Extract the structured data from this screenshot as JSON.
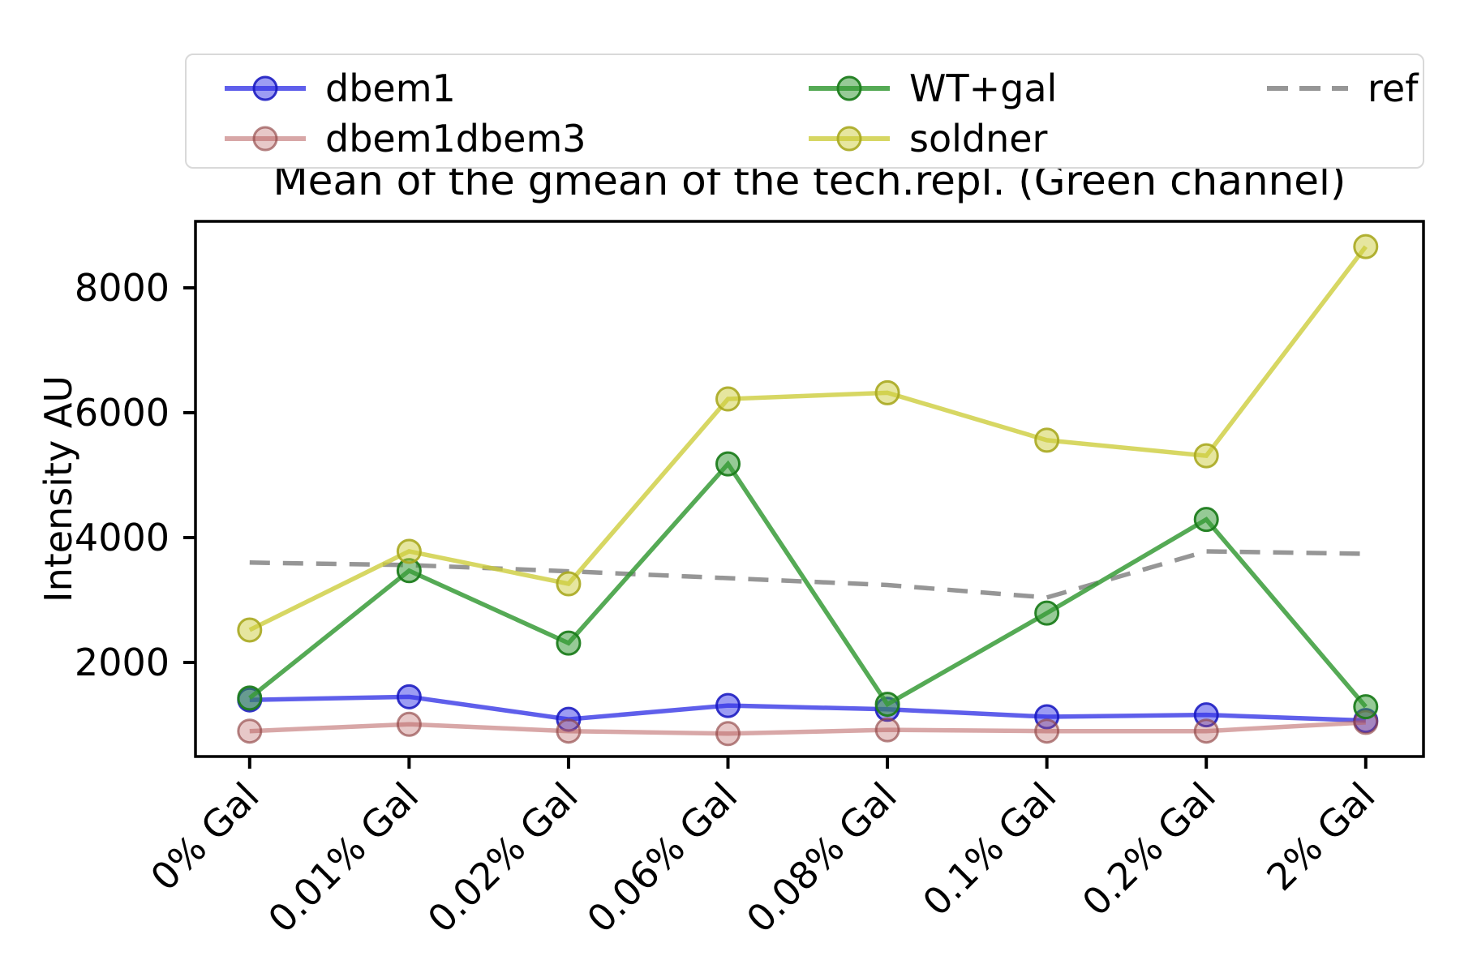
{
  "chart_data": {
    "type": "line",
    "title": "Mean of the gmean of the tech.repl. (Green channel)",
    "xlabel": "",
    "ylabel": "Intensity AU",
    "categories": [
      "0% Gal",
      "0.01% Gal",
      "0.02% Gal",
      "0.06% Gal",
      "0.08% Gal",
      "0.1% Gal",
      "0.2% Gal",
      "2% Gal"
    ],
    "yticks": [
      2000,
      4000,
      6000,
      8000
    ],
    "ylim": [
      490,
      9070
    ],
    "grid": false,
    "legend_position": "top",
    "series": [
      {
        "name": "dbem1",
        "color": "#3232e6",
        "edge": "#1818c0",
        "alpha": 0.78,
        "marker": true,
        "dashed": false,
        "zorder": 2,
        "values": [
          1400,
          1450,
          1090,
          1310,
          1250,
          1130,
          1160,
          1070
        ]
      },
      {
        "name": "dbem1dbem3",
        "color": "#b85f5f",
        "edge": "#8f4343",
        "alpha": 0.55,
        "marker": true,
        "dashed": false,
        "zorder": 3,
        "values": [
          900,
          1010,
          900,
          860,
          920,
          900,
          900,
          1040
        ]
      },
      {
        "name": "WT+gal",
        "color": "#379b37",
        "edge": "#1e7d1e",
        "alpha": 0.85,
        "marker": true,
        "dashed": false,
        "zorder": 4,
        "values": [
          1430,
          3470,
          2310,
          5180,
          1330,
          2790,
          4290,
          1290
        ]
      },
      {
        "name": "soldner",
        "color": "#cdcd3c",
        "edge": "#a9a920",
        "alpha": 0.8,
        "marker": true,
        "dashed": false,
        "zorder": 5,
        "values": [
          2520,
          3780,
          3260,
          6220,
          6320,
          5560,
          5310,
          8660
        ]
      },
      {
        "name": "ref",
        "color": "#969696",
        "edge": "#969696",
        "alpha": 1.0,
        "marker": false,
        "dashed": true,
        "zorder": 1,
        "values": [
          3600,
          3560,
          3460,
          3350,
          3240,
          3040,
          3780,
          3740
        ]
      }
    ]
  }
}
